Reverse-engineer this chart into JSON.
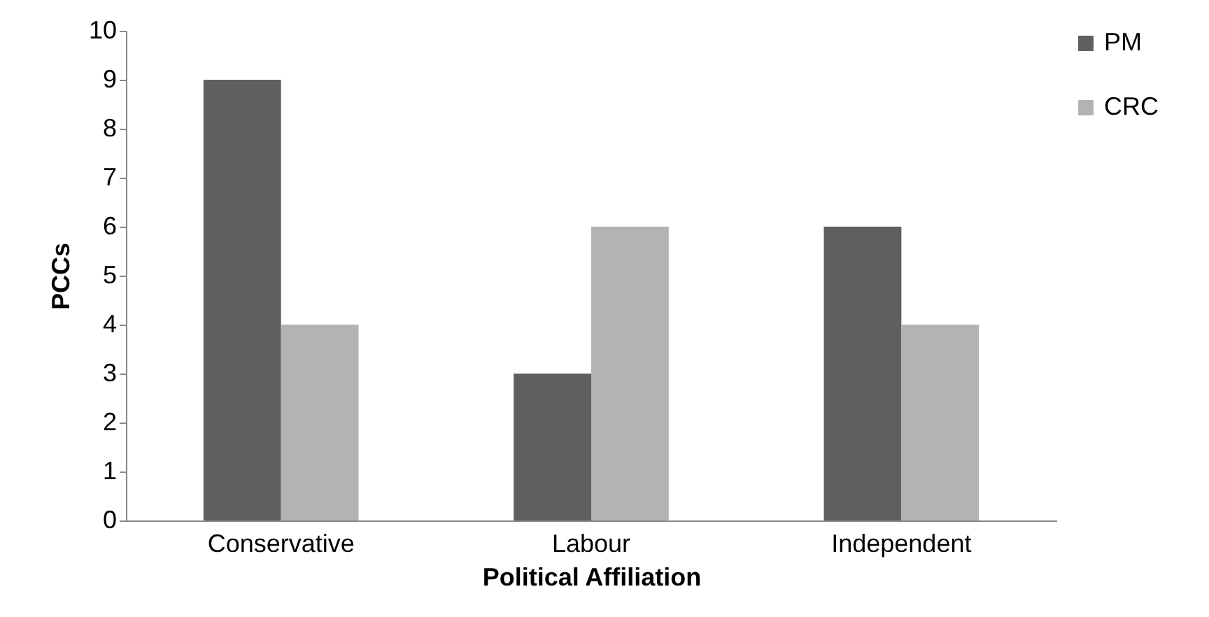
{
  "chart_data": {
    "type": "bar",
    "xlabel": "Political Affiliation",
    "ylabel": "PCCs",
    "categories": [
      "Conservative",
      "Labour",
      "Independent"
    ],
    "series": [
      {
        "name": "PM",
        "color": "#5f5f5f",
        "values": [
          9,
          3,
          6
        ]
      },
      {
        "name": "CRC",
        "color": "#b3b3b3",
        "values": [
          4,
          6,
          4
        ]
      }
    ],
    "ylim": [
      0,
      10
    ],
    "yticks": [
      0,
      1,
      2,
      3,
      4,
      5,
      6,
      7,
      8,
      9,
      10
    ],
    "legend": "right"
  }
}
